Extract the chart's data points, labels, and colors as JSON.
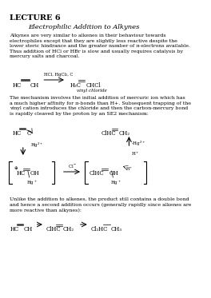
{
  "title": "LECTURE 6",
  "subtitle": "Electrophilic Addition to Alkynes",
  "body_text": "Alkynes are very similar to alkenes in their behaviour towards\nelectrophiles except that they are slightly less reactive despite the\nlower steric hindrance and the greater number of π-electrons available.\nThus addition of HCl or HBr is slow and usually requires catalysis by\nmercury salts and charcoal.",
  "mechanism_text": "The mechanism involves the initial addition of mercuric ion which has\na much higher affinity for π-bonds than H+. Subsequent trapping of the\nvinyl cation introduces the chloride and then the carbon-mercury bond\nis rapidly cleaved by the proton by an SE2 mechanism:",
  "final_text": "Unlike the addition to alkenes, the product still contains a double bond\nand hence a second addition occurs (generally rapidly since alkenes are\nmore reactive than alkynes):",
  "bg_color": "#ffffff",
  "text_color": "#000000",
  "font_size_title": 7,
  "font_size_subtitle": 6,
  "font_size_body": 4.5
}
